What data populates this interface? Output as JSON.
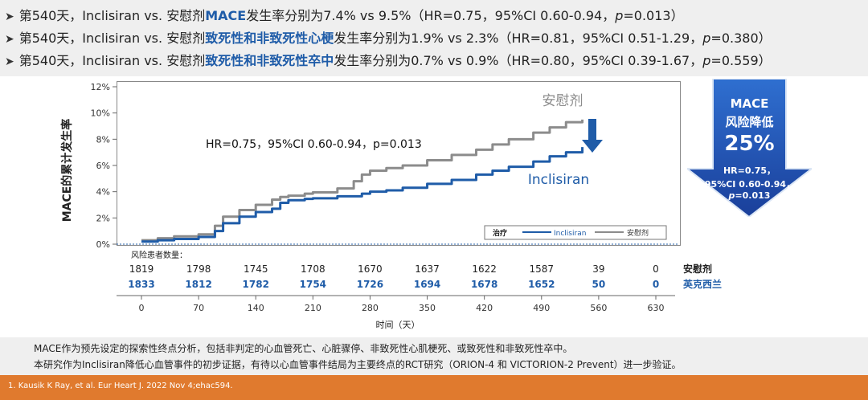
{
  "bullets": [
    {
      "pre": "第540天，Inclisiran vs. 安慰剂",
      "hl": "MACE",
      "post": "发生率分别为7.4% vs 9.5%（HR=0.75，95%CI 0.60-0.94，",
      "p_label": "p",
      "p_val": "=0.013）"
    },
    {
      "pre": "第540天，Inclisiran vs. 安慰剂",
      "hl": "致死性和非致死性心梗",
      "post": "发生率分别为1.9% vs 2.3%（HR=0.81，95%CI 0.51-1.29，",
      "p_label": "p",
      "p_val": "=0.380）"
    },
    {
      "pre": "第540天，Inclisiran vs. 安慰剂",
      "hl": "致死性和非致死性卒中",
      "post": "发生率分别为0.7% vs 0.9%（HR=0.80，95%CI 0.39-1.67，",
      "p_label": "p",
      "p_val": "=0.559）"
    }
  ],
  "badge": {
    "line1": "MACE",
    "line2": "风险降低",
    "line3": "25%",
    "line4": "HR=0.75，",
    "line5": "95%CI 0.60-0.94，",
    "p_label": "p",
    "p_val": "=0.013"
  },
  "chart_data": {
    "type": "line",
    "ylabel": "MACE的累计发生率",
    "xlabel": "时间（天）",
    "y_ticks": [
      "0%",
      "2%",
      "4%",
      "6%",
      "8%",
      "10%",
      "12%"
    ],
    "ylim": [
      0,
      12
    ],
    "x_ticks": [
      "0",
      "70",
      "140",
      "210",
      "280",
      "350",
      "420",
      "490",
      "560",
      "630"
    ],
    "xlim": [
      0,
      630
    ],
    "annotation": "HR=0.75，95%CI 0.60-0.94，p=0.013",
    "series": [
      {
        "name": "安慰剂",
        "color": "#8c8c8c",
        "x": [
          0,
          20,
          40,
          70,
          90,
          100,
          120,
          140,
          160,
          170,
          180,
          200,
          210,
          240,
          260,
          270,
          280,
          300,
          320,
          350,
          380,
          410,
          430,
          450,
          480,
          500,
          520,
          540
        ],
        "y": [
          0.3,
          0.45,
          0.6,
          0.75,
          1.4,
          2.1,
          2.6,
          3.0,
          3.4,
          3.6,
          3.7,
          3.85,
          3.95,
          4.25,
          4.8,
          5.3,
          5.6,
          5.8,
          6.0,
          6.4,
          6.8,
          7.2,
          7.6,
          8.0,
          8.5,
          8.9,
          9.3,
          9.5
        ]
      },
      {
        "name": "Inclisiran",
        "color": "#1f5ca8",
        "x": [
          0,
          20,
          40,
          70,
          90,
          100,
          120,
          140,
          160,
          170,
          180,
          200,
          210,
          240,
          270,
          280,
          300,
          320,
          350,
          380,
          410,
          430,
          450,
          480,
          500,
          520,
          540
        ],
        "y": [
          0.2,
          0.3,
          0.4,
          0.55,
          1.0,
          1.6,
          2.1,
          2.45,
          2.7,
          3.15,
          3.35,
          3.45,
          3.5,
          3.65,
          3.85,
          4.0,
          4.1,
          4.3,
          4.6,
          4.9,
          5.3,
          5.6,
          5.9,
          6.3,
          6.7,
          7.0,
          7.4
        ]
      }
    ],
    "series_labels": {
      "placebo": "安慰剂",
      "inclisiran": "Inclisiran"
    },
    "legend": {
      "title": "治疗",
      "items": [
        "Inclisiran",
        "安慰剂"
      ],
      "position": "bottom-right"
    }
  },
  "risk_table": {
    "title": "风险患者数量：",
    "rows": [
      {
        "label": "安慰剂",
        "color": "#222222",
        "values": [
          "1819",
          "1798",
          "1745",
          "1708",
          "1670",
          "1637",
          "1622",
          "1587",
          "39",
          "0"
        ]
      },
      {
        "label": "英克西兰",
        "color": "#1f5ca8",
        "values": [
          "1833",
          "1812",
          "1782",
          "1754",
          "1726",
          "1694",
          "1678",
          "1652",
          "50",
          "0"
        ]
      }
    ]
  },
  "notes": [
    "MACE作为预先设定的探索性终点分析，包括非判定的心血管死亡、心脏骤停、非致死性心肌梗死、或致死性和非致死性卒中。",
    "本研究作为Inclisiran降低心血管事件的初步证据，有待以心血管事件结局为主要终点的RCT研究（ORION-4 和 VICTORION-2 Prevent）进一步验证。"
  ],
  "footer": {
    "ref": "1.    Kausik K Ray, et al. Eur Heart J. 2022 Nov 4;ehac594."
  },
  "colors": {
    "accent": "#1f5ca8",
    "placebo": "#8c8c8c",
    "footer": "#e07a2e",
    "panel": "#efefef"
  }
}
